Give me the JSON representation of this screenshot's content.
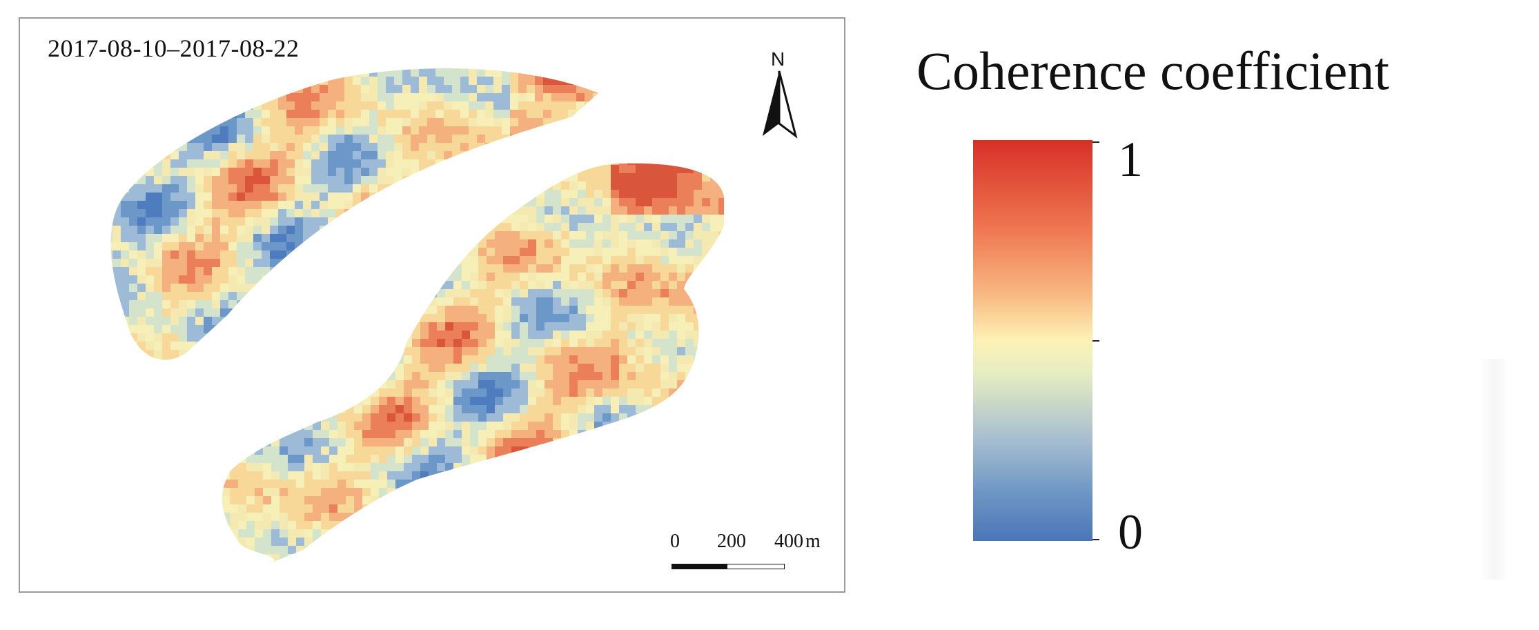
{
  "map": {
    "date_range": "2017-08-10–2017-08-22",
    "north_label": "N",
    "scale": {
      "labels": [
        "0",
        "200",
        "400"
      ],
      "unit": "m"
    }
  },
  "legend": {
    "title": "Coherence coefficient",
    "max_label": "1",
    "min_label": "0",
    "colors": {
      "high": "#d73027",
      "mid": "#fcf2b6",
      "low": "#4a75b8"
    }
  }
}
